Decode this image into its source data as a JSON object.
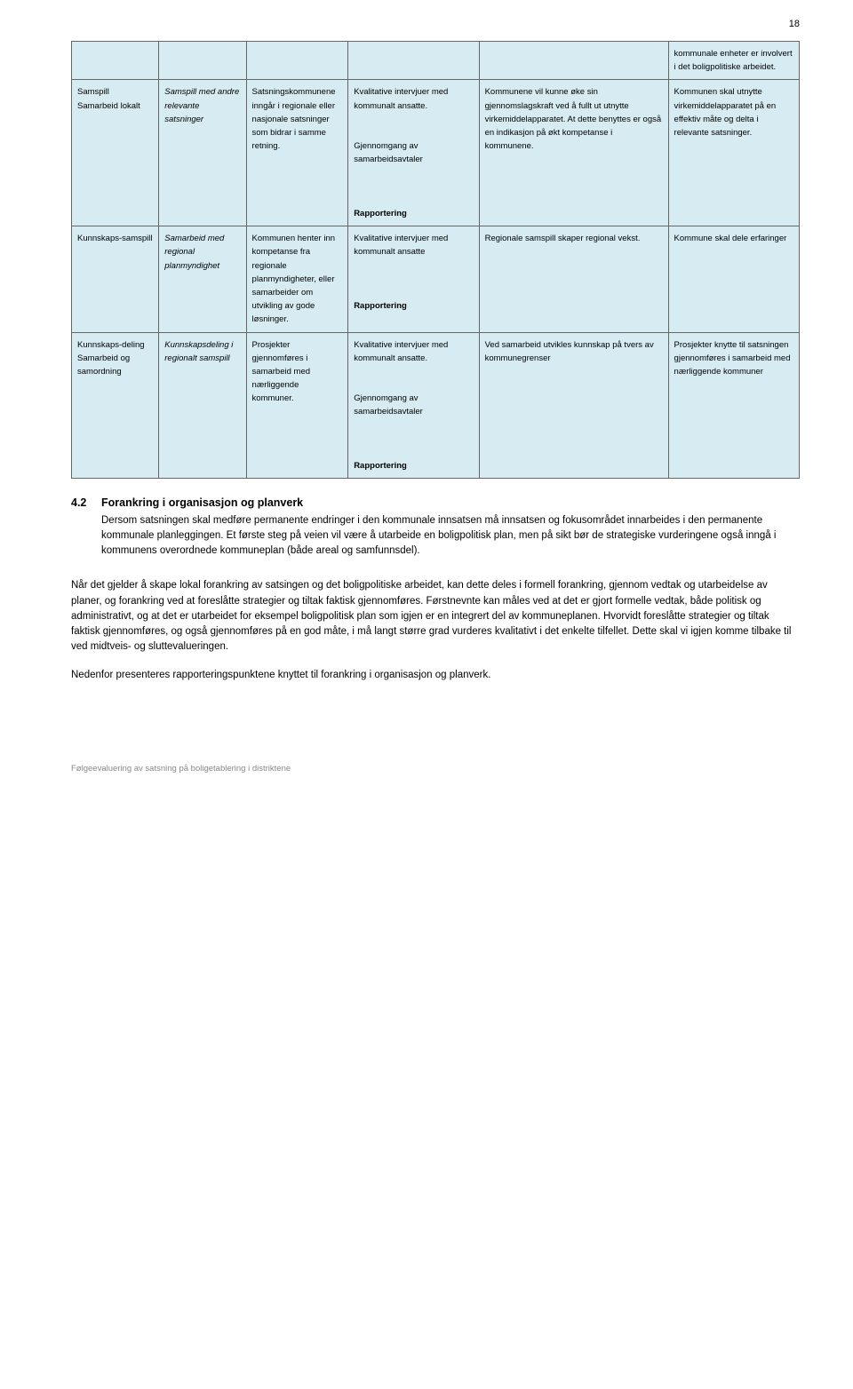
{
  "page_number": "18",
  "table": {
    "background_header": "#d6ecf2",
    "border_color": "#666666",
    "rows": [
      {
        "c1": "",
        "c2": "",
        "c3": "",
        "c4": "",
        "c5": "",
        "c6": "kommunale enheter er involvert i det boligpolitiske arbeidet."
      },
      {
        "c1": "Samspill\nSamarbeid lokalt",
        "c2": "Samspill med andre relevante satsninger",
        "c2_italic": true,
        "c3": "Satsningskommunene inngår i regionale eller nasjonale satsninger som bidrar i samme retning.",
        "c4": "Kvalitative intervjuer med kommunalt ansatte.\n\nGjennomgang av samarbeidsavtaler\n\n",
        "c4_bold_suffix": "Rapportering",
        "c5": "Kommunene vil kunne øke sin gjennomslagskraft ved å fullt ut utnytte virkemiddelapparatet. At dette benyttes er også en indikasjon på økt kompetanse i kommunene.",
        "c6": "Kommunen skal utnytte virkemiddelapparatet på en effektiv måte og delta i relevante satsninger."
      },
      {
        "c1": "Kunnskaps-samspill",
        "c2": "Samarbeid med regional planmyndighet",
        "c2_italic": true,
        "c3": "Kommunen henter inn kompetanse fra regionale planmyndigheter, eller samarbeider om utvikling av gode løsninger.",
        "c4": "Kvalitative intervjuer med kommunalt ansatte\n\n",
        "c4_bold_suffix": "Rapportering",
        "c5": "Regionale samspill skaper regional vekst.",
        "c6": "Kommune skal dele erfaringer"
      },
      {
        "c1": "Kunnskaps-deling\nSamarbeid og samordning",
        "c2": "Kunnskapsdeling i regionalt samspill",
        "c2_italic": true,
        "c3": "Prosjekter gjennomføres i samarbeid med nærliggende kommuner.",
        "c4": "Kvalitative intervjuer med kommunalt ansatte.\n\nGjennomgang av samarbeidsavtaler\n\n",
        "c4_bold_suffix": "Rapportering",
        "c5": "Ved samarbeid utvikles kunnskap på tvers av kommunegrenser",
        "c6": "Prosjekter knytte til satsningen gjennomføres i samarbeid med nærliggende kommuner"
      }
    ]
  },
  "section": {
    "number": "4.2",
    "title": "Forankring i organisasjon og planverk",
    "para1": "Dersom satsningen skal medføre permanente endringer i den kommunale innsatsen må innsatsen og fokusområdet innarbeides i den permanente kommunale planleggingen. Et første steg på veien vil være å utarbeide en boligpolitisk plan, men på sikt bør de strategiske vurderingene også inngå i kommunens overordnede kommuneplan (både areal og samfunnsdel).",
    "para2": "Når det gjelder å skape lokal forankring av satsingen og det boligpolitiske arbeidet, kan dette deles i formell forankring, gjennom vedtak og utarbeidelse av planer, og forankring ved at foreslåtte strategier og tiltak faktisk gjennomføres. Førstnevnte kan måles ved at det er gjort formelle vedtak, både politisk og administrativt, og at det er utarbeidet for eksempel boligpolitisk plan som igjen er en integrert del av kommuneplanen. Hvorvidt foreslåtte strategier og tiltak faktisk gjennomføres, og også gjennomføres på en god måte, i må langt større grad vurderes kvalitativt i det enkelte tilfellet. Dette skal vi igjen komme tilbake til ved midtveis- og sluttevalueringen.",
    "para3": "Nedenfor presenteres rapporteringspunktene knyttet til forankring i organisasjon og planverk."
  },
  "footer": "Følgeevaluering av satsning på boligetablering i distriktene"
}
